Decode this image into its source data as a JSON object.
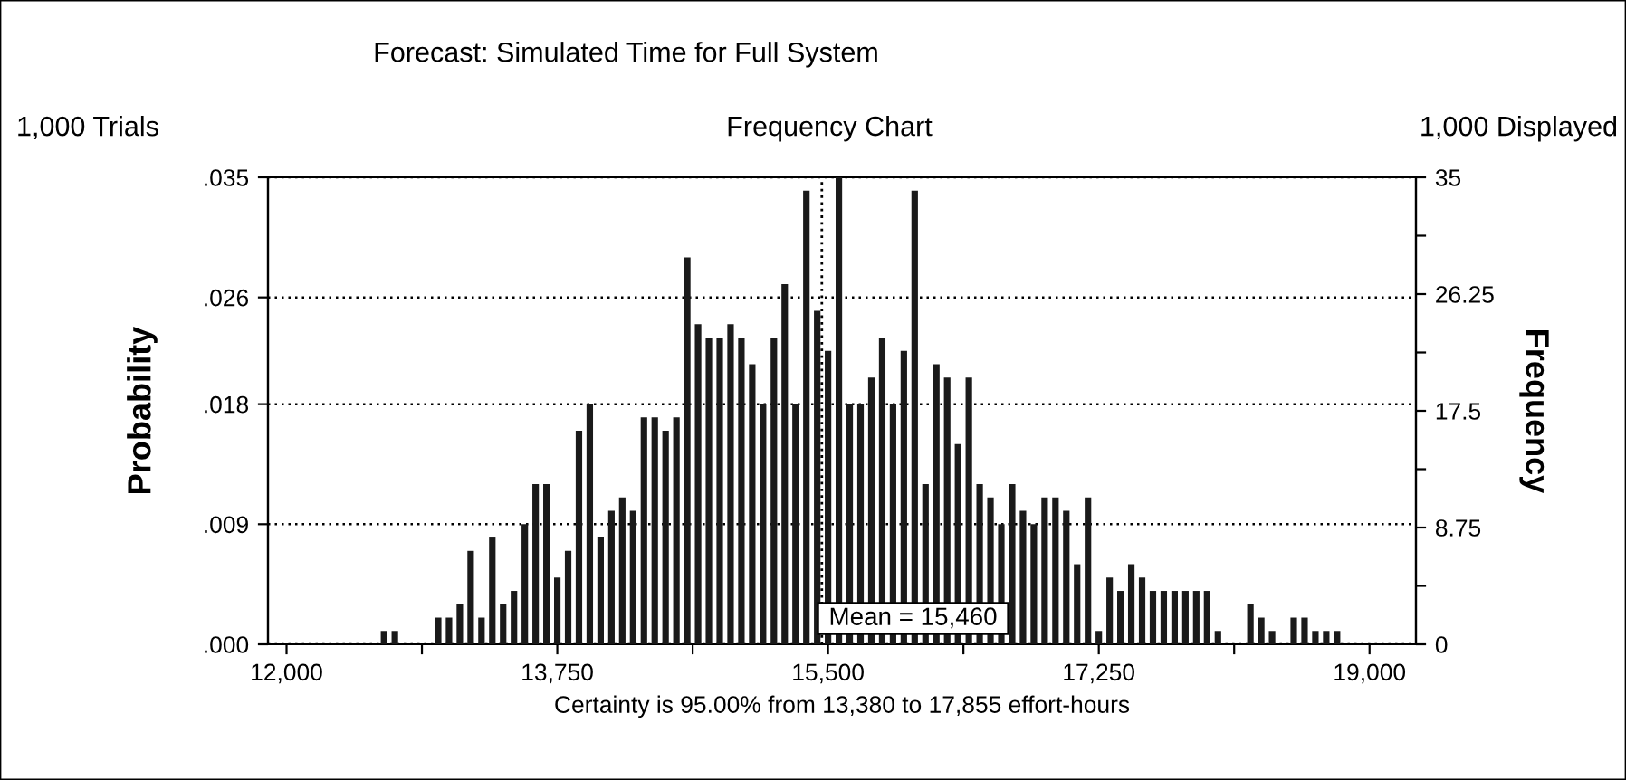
{
  "chart_data": {
    "type": "histogram",
    "title": "Forecast: Simulated Time for Full System",
    "subtitle": "Frequency Chart",
    "annotations": [
      "1,000 Trials",
      "1,000 Displayed"
    ],
    "xlabel": "Certainty is 95.00% from 13,380 to 17,855 effort-hours",
    "ylabel": "Probability",
    "y2label": "Frequency",
    "bins": [
      11965,
      12035,
      12105,
      12175,
      12245,
      12315,
      12385,
      12455,
      12525,
      12595,
      12665,
      12735,
      12805,
      12875,
      12945,
      13015,
      13085,
      13155,
      13225,
      13295,
      13365,
      13435,
      13505,
      13575,
      13645,
      13715,
      13785,
      13855,
      13925,
      13995,
      14065,
      14135,
      14205,
      14275,
      14345,
      14415,
      14485,
      14555,
      14625,
      14695,
      14765,
      14835,
      14905,
      14975,
      15045,
      15115,
      15185,
      15255,
      15325,
      15395,
      15465,
      15535,
      15605,
      15675,
      15745,
      15815,
      15885,
      15955,
      16025,
      16095,
      16165,
      16235,
      16305,
      16375,
      16445,
      16515,
      16585,
      16655,
      16725,
      16795,
      16865,
      16935,
      17005,
      17075,
      17145,
      17215,
      17285,
      17355,
      17425,
      17495,
      17565,
      17635,
      17705,
      17775,
      17845,
      17915,
      17985,
      18055,
      18125,
      18195,
      18265,
      18335,
      18405,
      18475,
      18545,
      18615,
      18685,
      18755,
      18825,
      18895,
      18965
    ],
    "series": [
      {
        "axis": "y2",
        "color": "#1a1a1a",
        "values": [
          0,
          0,
          0,
          0,
          0,
          0,
          0,
          0,
          0,
          1,
          1,
          0,
          0,
          0,
          2,
          2,
          3,
          7,
          2,
          8,
          3,
          4,
          9,
          12,
          12,
          5,
          7,
          16,
          18,
          8,
          10,
          11,
          10,
          17,
          17,
          16,
          17,
          29,
          24,
          23,
          23,
          24,
          23,
          21,
          18,
          23,
          27,
          18,
          34,
          25,
          22,
          35,
          18,
          18,
          20,
          23,
          18,
          22,
          34,
          12,
          21,
          20,
          15,
          20,
          12,
          11,
          9,
          12,
          10,
          9,
          11,
          11,
          10,
          6,
          11,
          1,
          5,
          4,
          6,
          5,
          4,
          4,
          4,
          4,
          4,
          4,
          1,
          0,
          0,
          3,
          2,
          1,
          0,
          2,
          2,
          1,
          1,
          1,
          0,
          0
        ]
      }
    ],
    "xlim": [
      11880,
      19300
    ],
    "xticks": [
      {
        "value": 12000,
        "label": "12,000"
      },
      {
        "value": 12875,
        "label": null
      },
      {
        "value": 13750,
        "label": "13,750"
      },
      {
        "value": 14625,
        "label": null
      },
      {
        "value": 15500,
        "label": "15,500"
      },
      {
        "value": 16375,
        "label": null
      },
      {
        "value": 17250,
        "label": "17,250"
      },
      {
        "value": 18125,
        "label": null
      },
      {
        "value": 19000,
        "label": "19,000"
      }
    ],
    "ylim": [
      0,
      0.035
    ],
    "yticks": [
      {
        "value": 0,
        "label": ".000"
      },
      {
        "value": 0.009,
        "label": ".009"
      },
      {
        "value": 0.018,
        "label": ".018"
      },
      {
        "value": 0.026,
        "label": ".026"
      },
      {
        "value": 0.035,
        "label": ".035"
      }
    ],
    "y2lim": [
      0,
      35
    ],
    "y2ticks": [
      0,
      {
        "value": 4.375,
        "label": null
      },
      8.75,
      {
        "value": 13.125,
        "label": null
      },
      17.5,
      {
        "value": 21.875,
        "label": null
      },
      26.25,
      {
        "value": 30.625,
        "label": null
      },
      35
    ],
    "grid": "y",
    "ref_lines": [
      {
        "axis": "x",
        "value": 15460,
        "label": "Mean = 15,460",
        "line_style": "dotted"
      }
    ]
  }
}
